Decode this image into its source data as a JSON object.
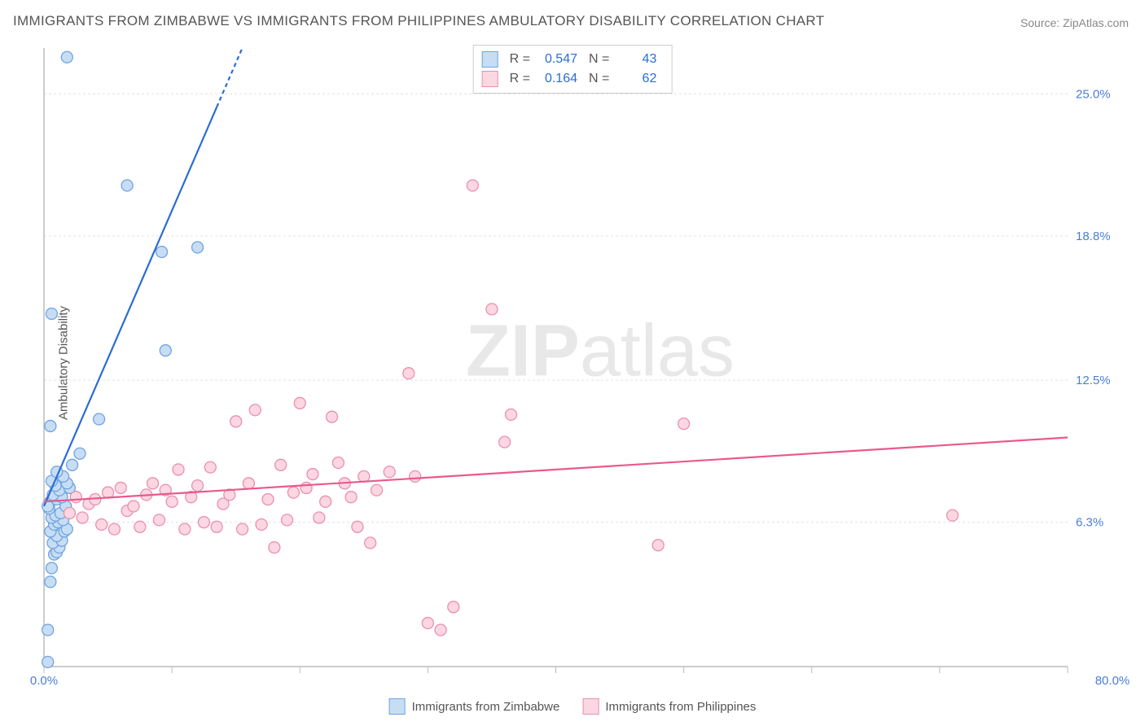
{
  "title": "IMMIGRANTS FROM ZIMBABWE VS IMMIGRANTS FROM PHILIPPINES AMBULATORY DISABILITY CORRELATION CHART",
  "source": "Source: ZipAtlas.com",
  "y_axis_label": "Ambulatory Disability",
  "watermark": "ZIPatlas",
  "chart": {
    "type": "scatter-correlation",
    "xlim": [
      0,
      80
    ],
    "ylim": [
      0,
      27
    ],
    "x_ticks": [
      0,
      10,
      20,
      30,
      40,
      50,
      60,
      70,
      80
    ],
    "x_tick_labels_shown": {
      "0": "0.0%",
      "80": "80.0%"
    },
    "y_gridlines": [
      6.3,
      12.5,
      18.8,
      25.0
    ],
    "y_tick_labels": [
      "6.3%",
      "12.5%",
      "18.8%",
      "25.0%"
    ],
    "background_color": "#ffffff",
    "grid_color": "#e0e0e0",
    "axis_color": "#bbbbbb",
    "marker_radius": 7,
    "marker_stroke_width": 1.3,
    "regression_line_width": 2.2,
    "title_fontsize": 17,
    "tick_label_fontsize": 15,
    "tick_label_color": "#4a7ed8",
    "y_label_fontsize": 15
  },
  "legend_stats": {
    "rows": [
      {
        "swatch": "blue",
        "r_label": "R =",
        "r_val": "0.547",
        "n_label": "N =",
        "n_val": "43"
      },
      {
        "swatch": "pink",
        "r_label": "R =",
        "r_val": "0.164",
        "n_label": "N =",
        "n_val": "62"
      }
    ]
  },
  "bottom_legend": {
    "items": [
      {
        "swatch": "blue",
        "label": "Immigrants from Zimbabwe"
      },
      {
        "swatch": "pink",
        "label": "Immigrants from Philippines"
      }
    ]
  },
  "series": [
    {
      "name": "zimbabwe",
      "color_fill": "#c7ddf4",
      "color_stroke": "#6fa3e0",
      "reg_line_color": "#2b6cd4",
      "reg_line": {
        "x1": 0,
        "y1": 7.0,
        "x2": 15.5,
        "y2": 27.0,
        "dash_from_x": 13.5
      },
      "points": [
        [
          0.3,
          0.2
        ],
        [
          0.3,
          1.6
        ],
        [
          0.5,
          3.7
        ],
        [
          0.6,
          4.3
        ],
        [
          0.8,
          4.9
        ],
        [
          1.0,
          5.0
        ],
        [
          1.2,
          5.2
        ],
        [
          0.7,
          5.4
        ],
        [
          1.4,
          5.5
        ],
        [
          1.0,
          5.7
        ],
        [
          0.5,
          5.9
        ],
        [
          1.6,
          5.9
        ],
        [
          1.8,
          6.0
        ],
        [
          0.8,
          6.2
        ],
        [
          1.1,
          6.3
        ],
        [
          1.5,
          6.4
        ],
        [
          0.6,
          6.5
        ],
        [
          0.9,
          6.6
        ],
        [
          1.3,
          6.7
        ],
        [
          0.4,
          6.9
        ],
        [
          1.7,
          7.0
        ],
        [
          0.5,
          7.2
        ],
        [
          1.0,
          7.3
        ],
        [
          1.4,
          7.4
        ],
        [
          0.7,
          7.5
        ],
        [
          1.2,
          7.7
        ],
        [
          2.0,
          7.8
        ],
        [
          0.9,
          7.9
        ],
        [
          1.8,
          8.0
        ],
        [
          0.6,
          8.1
        ],
        [
          1.5,
          8.3
        ],
        [
          1.0,
          8.5
        ],
        [
          2.2,
          8.8
        ],
        [
          2.8,
          9.3
        ],
        [
          0.5,
          10.5
        ],
        [
          4.3,
          10.8
        ],
        [
          9.5,
          13.8
        ],
        [
          0.6,
          15.4
        ],
        [
          9.2,
          18.1
        ],
        [
          12.0,
          18.3
        ],
        [
          6.5,
          21.0
        ],
        [
          1.8,
          26.6
        ],
        [
          0.3,
          7.0
        ]
      ]
    },
    {
      "name": "philippines",
      "color_fill": "#fcd7e2",
      "color_stroke": "#e98fae",
      "reg_line_color": "#e85a8a",
      "reg_line": {
        "x1": 0,
        "y1": 7.2,
        "x2": 80,
        "y2": 10.0,
        "dash_from_x": null
      },
      "points": [
        [
          2.0,
          6.7
        ],
        [
          2.5,
          7.4
        ],
        [
          3.0,
          6.5
        ],
        [
          3.5,
          7.1
        ],
        [
          4.0,
          7.3
        ],
        [
          4.5,
          6.2
        ],
        [
          5.0,
          7.6
        ],
        [
          5.5,
          6.0
        ],
        [
          6.0,
          7.8
        ],
        [
          6.5,
          6.8
        ],
        [
          7.0,
          7.0
        ],
        [
          7.5,
          6.1
        ],
        [
          8.0,
          7.5
        ],
        [
          8.5,
          8.0
        ],
        [
          9.0,
          6.4
        ],
        [
          9.5,
          7.7
        ],
        [
          10.0,
          7.2
        ],
        [
          10.5,
          8.6
        ],
        [
          11.0,
          6.0
        ],
        [
          11.5,
          7.4
        ],
        [
          12.0,
          7.9
        ],
        [
          12.5,
          6.3
        ],
        [
          13.0,
          8.7
        ],
        [
          13.5,
          6.1
        ],
        [
          14.0,
          7.1
        ],
        [
          14.5,
          7.5
        ],
        [
          15.0,
          10.7
        ],
        [
          15.5,
          6.0
        ],
        [
          16.0,
          8.0
        ],
        [
          16.5,
          11.2
        ],
        [
          17.0,
          6.2
        ],
        [
          17.5,
          7.3
        ],
        [
          18.0,
          5.2
        ],
        [
          18.5,
          8.8
        ],
        [
          19.0,
          6.4
        ],
        [
          19.5,
          7.6
        ],
        [
          20.0,
          11.5
        ],
        [
          20.5,
          7.8
        ],
        [
          21.0,
          8.4
        ],
        [
          21.5,
          6.5
        ],
        [
          22.0,
          7.2
        ],
        [
          22.5,
          10.9
        ],
        [
          23.0,
          8.9
        ],
        [
          23.5,
          8.0
        ],
        [
          24.0,
          7.4
        ],
        [
          24.5,
          6.1
        ],
        [
          25.0,
          8.3
        ],
        [
          25.5,
          5.4
        ],
        [
          26.0,
          7.7
        ],
        [
          27.0,
          8.5
        ],
        [
          28.5,
          12.8
        ],
        [
          29.0,
          8.3
        ],
        [
          30.0,
          1.9
        ],
        [
          31.0,
          1.6
        ],
        [
          32.0,
          2.6
        ],
        [
          33.5,
          21.0
        ],
        [
          35.0,
          15.6
        ],
        [
          36.0,
          9.8
        ],
        [
          36.5,
          11.0
        ],
        [
          48.0,
          5.3
        ],
        [
          50.0,
          10.6
        ],
        [
          71.0,
          6.6
        ]
      ]
    }
  ]
}
